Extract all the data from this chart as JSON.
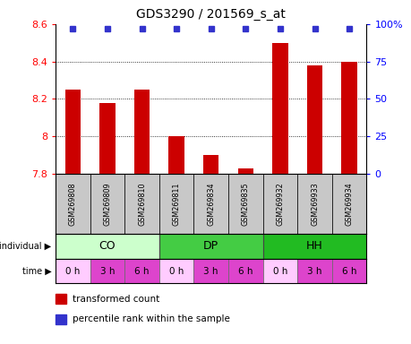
{
  "title": "GDS3290 / 201569_s_at",
  "samples": [
    "GSM269808",
    "GSM269809",
    "GSM269810",
    "GSM269811",
    "GSM269834",
    "GSM269835",
    "GSM269932",
    "GSM269933",
    "GSM269934"
  ],
  "bar_values": [
    8.25,
    8.18,
    8.25,
    8.0,
    7.9,
    7.83,
    8.5,
    8.38,
    8.4
  ],
  "bar_color": "#cc0000",
  "percentile_color": "#3333cc",
  "ylim_left": [
    7.8,
    8.6
  ],
  "yticks_left": [
    7.8,
    8.0,
    8.2,
    8.4,
    8.6
  ],
  "ytick_labels_left": [
    "7.8",
    "8",
    "8.2",
    "8.4",
    "8.6"
  ],
  "ylim_right": [
    0,
    100
  ],
  "yticks_right": [
    0,
    25,
    50,
    75,
    100
  ],
  "yticklabels_right": [
    "0",
    "25",
    "50",
    "75",
    "100%"
  ],
  "groups": [
    {
      "label": "CO",
      "start": 0,
      "end": 3,
      "color": "#ccffcc"
    },
    {
      "label": "DP",
      "start": 3,
      "end": 6,
      "color": "#44cc44"
    },
    {
      "label": "HH",
      "start": 6,
      "end": 9,
      "color": "#22bb22"
    }
  ],
  "times": [
    "0 h",
    "3 h",
    "6 h",
    "0 h",
    "3 h",
    "6 h",
    "0 h",
    "3 h",
    "6 h"
  ],
  "time_bg": [
    "#ffccff",
    "#dd44cc",
    "#dd44cc",
    "#ffccff",
    "#dd44cc",
    "#dd44cc",
    "#ffccff",
    "#dd44cc",
    "#dd44cc"
  ],
  "individual_label": "individual",
  "time_label": "time",
  "legend_items": [
    {
      "color": "#cc0000",
      "label": "transformed count"
    },
    {
      "color": "#3333cc",
      "label": "percentile rank within the sample"
    }
  ],
  "gsm_bg": "#c8c8c8"
}
